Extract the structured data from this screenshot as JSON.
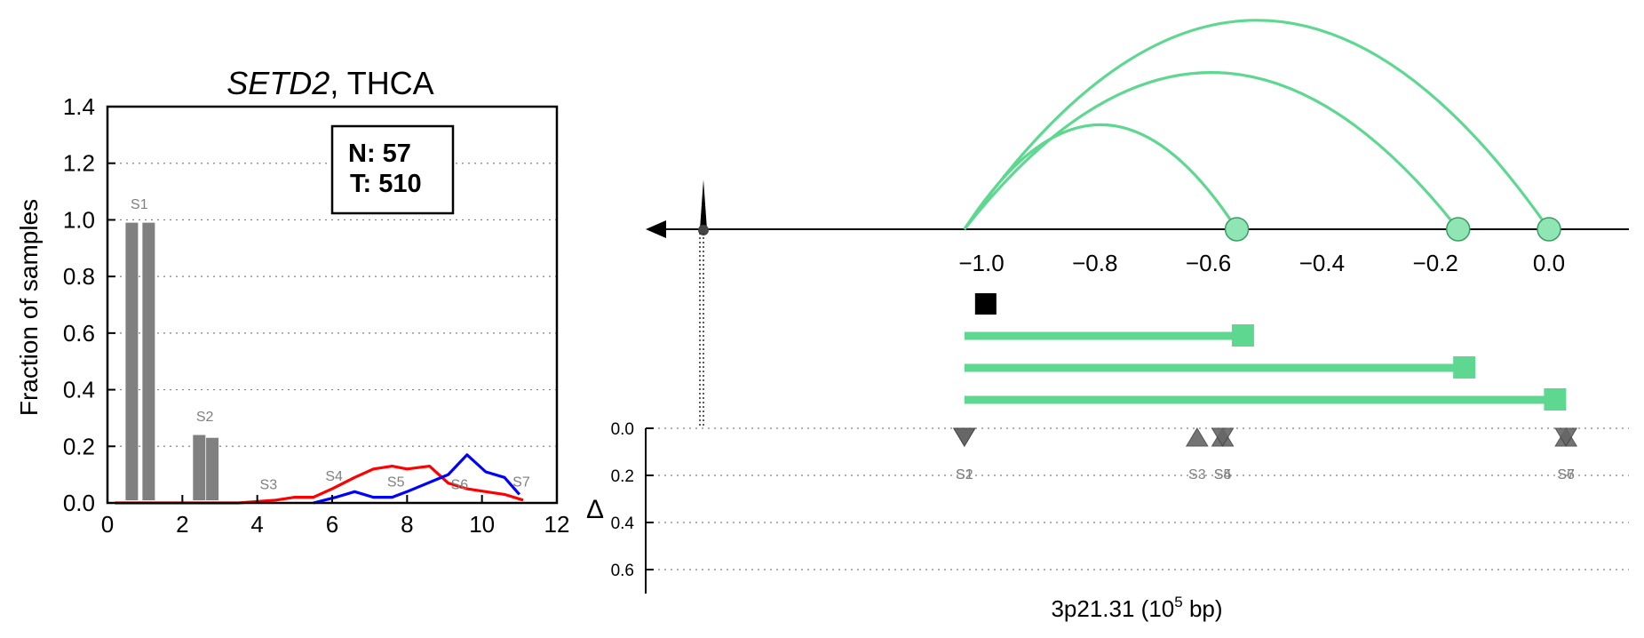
{
  "colors": {
    "arc": "#5ed891",
    "arc_fill": "#8fe6b4",
    "normal": "#ff0000",
    "tumor": "#0000ff",
    "bar": "#808080",
    "marker": "#666666",
    "black": "#000000"
  },
  "chart_data": [
    {
      "type": "bar",
      "title_italic": "SETD2",
      "title_rest": ", THCA",
      "ylabel": "Fraction of samples",
      "xlim": [
        0,
        12
      ],
      "ylim": [
        0,
        1.4
      ],
      "xticks": [
        "0",
        "2",
        "4",
        "6",
        "8",
        "10",
        "12"
      ],
      "yticks": [
        "0.0",
        "0.2",
        "0.4",
        "0.6",
        "0.8",
        "1.0",
        "1.2",
        "1.4"
      ],
      "grid": "horizontal dotted",
      "legend_box": {
        "line1": "N: 57",
        "line2": "T: 510",
        "placement": "top-right"
      },
      "bars": [
        {
          "x": 0.65,
          "value": 0.99
        },
        {
          "x": 1.1,
          "value": 0.99
        },
        {
          "x": 2.45,
          "value": 0.24
        },
        {
          "x": 2.8,
          "value": 0.23
        }
      ],
      "series": [
        {
          "color": "red",
          "x": [
            0.2,
            3.5,
            4.5,
            5.0,
            5.5,
            6.0,
            6.6,
            7.1,
            7.6,
            8.0,
            8.6,
            9.1,
            9.6,
            10.1,
            10.6,
            11.1
          ],
          "values": [
            0.0,
            0.0,
            0.01,
            0.02,
            0.02,
            0.05,
            0.09,
            0.12,
            0.13,
            0.12,
            0.13,
            0.07,
            0.05,
            0.04,
            0.03,
            0.01
          ]
        },
        {
          "color": "blue",
          "x": [
            5.5,
            6.1,
            6.6,
            7.1,
            7.6,
            8.0,
            9.1,
            9.6,
            10.1,
            10.6,
            11.0
          ],
          "values": [
            0.0,
            0.02,
            0.04,
            0.02,
            0.02,
            0.04,
            0.1,
            0.17,
            0.11,
            0.09,
            0.03
          ]
        }
      ],
      "annotations": [
        {
          "label": "S1",
          "x": 0.85,
          "y": 1.02
        },
        {
          "label": "S2",
          "x": 2.6,
          "y": 0.27
        },
        {
          "label": "S3",
          "x": 4.3,
          "y": 0.03
        },
        {
          "label": "S4",
          "x": 6.05,
          "y": 0.06
        },
        {
          "label": "S5",
          "x": 7.7,
          "y": 0.04
        },
        {
          "label": "S6",
          "x": 9.4,
          "y": 0.03
        },
        {
          "label": "S7",
          "x": 11.05,
          "y": 0.04
        }
      ]
    },
    {
      "type": "arc-diagram",
      "xlabel_main": "3p21.31 (10",
      "xlabel_sup": "5",
      "xlabel_end": " bp)",
      "xlim": [
        -1.12,
        0.1
      ],
      "xticks": [
        "−1.0",
        "−0.8",
        "−0.6",
        "−0.4",
        "−0.2",
        "0.0"
      ],
      "xtick_values": [
        -1.0,
        -0.8,
        -0.6,
        -0.4,
        -0.2,
        0.0
      ],
      "origin": -1.03,
      "arcs": [
        {
          "start": -1.03,
          "end": -0.55,
          "peak": 0.28
        },
        {
          "start": -1.03,
          "end": -0.16,
          "peak": 0.42
        },
        {
          "start": -1.03,
          "end": 0.0,
          "peak": 0.56
        }
      ],
      "isoform_bars": [
        {
          "start": -1.03,
          "end": -1.01,
          "color": "black"
        },
        {
          "start": -1.03,
          "end": -0.54,
          "color": "green"
        },
        {
          "start": -1.03,
          "end": -0.15,
          "color": "green"
        },
        {
          "start": -1.03,
          "end": 0.01,
          "color": "green"
        }
      ],
      "delta_ylabel": "Δ",
      "delta_yticks": [
        "0.0",
        "0.2",
        "0.4",
        "0.6"
      ],
      "delta_markers": [
        {
          "label": "S1",
          "x": -1.03,
          "type": "down"
        },
        {
          "label": "S2",
          "x": -1.03,
          "type": "down"
        },
        {
          "label": "S3",
          "x": -0.62,
          "type": "up"
        },
        {
          "label": "S4",
          "x": -0.575,
          "type": "up"
        },
        {
          "label": "S5",
          "x": -0.575,
          "type": "down"
        },
        {
          "label": "S6",
          "x": 0.03,
          "type": "up"
        },
        {
          "label": "S7",
          "x": 0.03,
          "type": "down"
        }
      ],
      "delta_label_overlaps": [
        {
          "label": "S2",
          "x": -1.03
        },
        {
          "label": "S4",
          "x": -0.575
        },
        {
          "label": "S5",
          "x": -0.575
        },
        {
          "label": "S6",
          "x": 0.03
        },
        {
          "label": "S7",
          "x": 0.03
        }
      ]
    }
  ]
}
